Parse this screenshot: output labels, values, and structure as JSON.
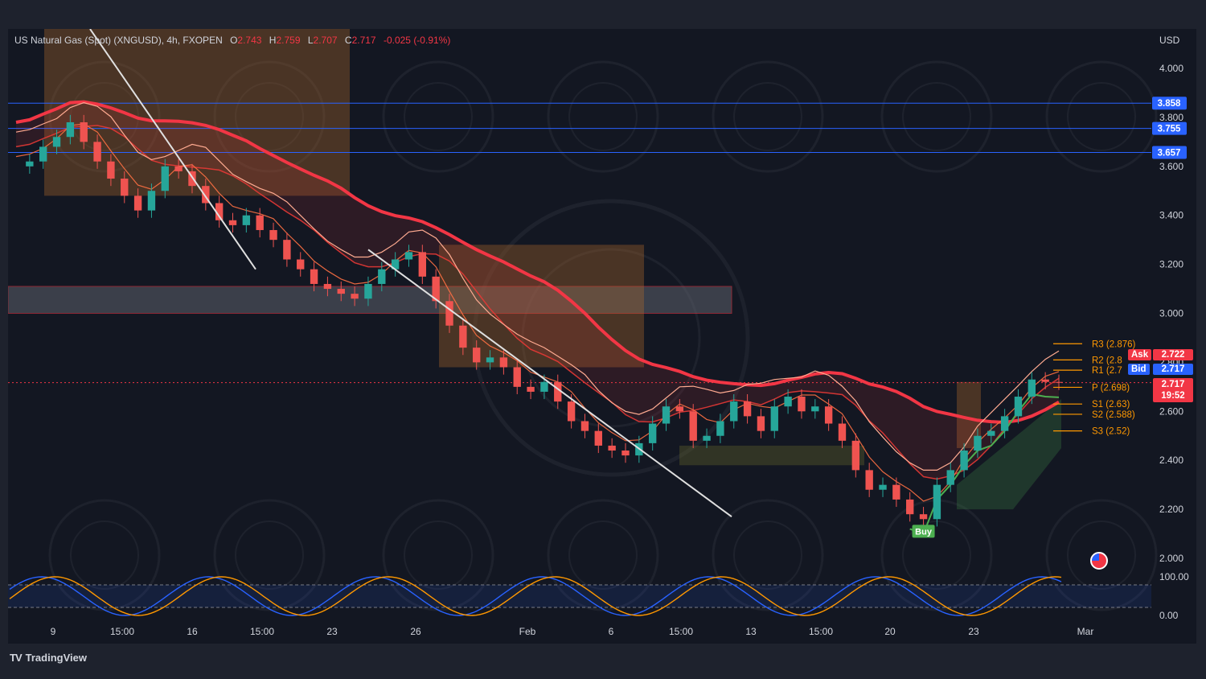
{
  "header": {
    "symbol": "US Natural Gas (Spot) (XNGUSD), 4h, FXOPEN",
    "open_label": "O",
    "open": "2.743",
    "high_label": "H",
    "high": "2.759",
    "low_label": "L",
    "low": "2.707",
    "close_label": "C",
    "close": "2.717",
    "change": "-0.025 (-0.91%)"
  },
  "branding": {
    "logo_glyph": "TV",
    "name": "TradingView"
  },
  "chart_data": {
    "type": "line",
    "currency": "USD",
    "y_ticks": [
      "4.000",
      "3.800",
      "3.600",
      "3.400",
      "3.200",
      "3.000",
      "2.800",
      "2.600",
      "2.400",
      "2.200",
      "2.000"
    ],
    "ylim": [
      1.95,
      4.15
    ],
    "x_ticks": [
      "9",
      "15:00",
      "16",
      "15:00",
      "23",
      "26",
      "Feb",
      "6",
      "15:00",
      "13",
      "15:00",
      "20",
      "23",
      "Mar"
    ],
    "horizontal_levels": [
      {
        "value": 3.858,
        "label": "3.858",
        "color": "#2962ff"
      },
      {
        "value": 3.755,
        "label": "3.755",
        "color": "#2962ff"
      },
      {
        "value": 3.657,
        "label": "3.657",
        "color": "#2962ff"
      }
    ],
    "supply_zone": {
      "top": 3.11,
      "bottom": 3.0
    },
    "pivots": [
      {
        "name": "R3",
        "value": 2.876,
        "label": "R3 (2.876)"
      },
      {
        "name": "R2",
        "value": 2.81,
        "label": "R2 (2.8"
      },
      {
        "name": "R1",
        "value": 2.768,
        "label": "R1 (2.7"
      },
      {
        "name": "P",
        "value": 2.698,
        "label": "P (2.698)"
      },
      {
        "name": "S1",
        "value": 2.63,
        "label": "S1 (2.63)"
      },
      {
        "name": "S2",
        "value": 2.588,
        "label": "S2 (2.588)"
      },
      {
        "name": "S3",
        "value": 2.52,
        "label": "S3 (2.52)"
      }
    ],
    "quote": {
      "ask_label": "Ask",
      "ask": "2.722",
      "bid_label": "Bid",
      "bid": "2.717",
      "last": "2.717",
      "countdown": "19:52"
    },
    "signal": {
      "label": "Buy",
      "price": 2.15
    },
    "series": [
      {
        "values": [
          3.6,
          3.62,
          3.68,
          3.72,
          3.78,
          3.7,
          3.62,
          3.55,
          3.48,
          3.42,
          3.5,
          3.6,
          3.58,
          3.52,
          3.45,
          3.38,
          3.36,
          3.4,
          3.34,
          3.3,
          3.22,
          3.18,
          3.12,
          3.1,
          3.08,
          3.06,
          3.12,
          3.18,
          3.22,
          3.25,
          3.15,
          3.05,
          2.95,
          2.86,
          2.8,
          2.82,
          2.78,
          2.7,
          2.68,
          2.72,
          2.64,
          2.56,
          2.52,
          2.46,
          2.44,
          2.42,
          2.47,
          2.55,
          2.62,
          2.6,
          2.48,
          2.5,
          2.56,
          2.64,
          2.58,
          2.52,
          2.62,
          2.66,
          2.6,
          2.62,
          2.55,
          2.48,
          2.36,
          2.28,
          2.3,
          2.24,
          2.18,
          2.16,
          2.3,
          2.36,
          2.44,
          2.5,
          2.52,
          2.58,
          2.66,
          2.73,
          2.72,
          2.717
        ]
      }
    ],
    "oscillator": {
      "ticks": [
        "100.00",
        "0.00"
      ],
      "range": [
        0,
        100
      ]
    }
  }
}
